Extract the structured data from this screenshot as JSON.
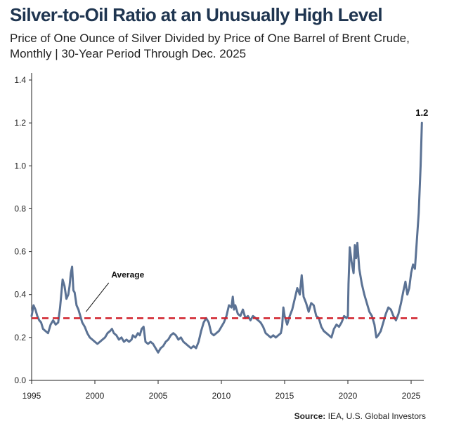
{
  "title": "Silver-to-Oil Ratio at an Unusually High Level",
  "subtitle": "Price of One Ounce of Silver Divided by Price of One Barrel of Brent Crude, Monthly | 30-Year Period Through Dec. 2025",
  "source_label": "Source:",
  "source_text": "IEA, U.S. Global Investors",
  "chart_data": {
    "type": "line",
    "ylim": [
      0,
      1.4
    ],
    "xlim": [
      1995,
      2026
    ],
    "y_ticks": [
      "0.0",
      "0.2",
      "0.4",
      "0.6",
      "0.8",
      "1.0",
      "1.2",
      "1.4"
    ],
    "x_ticks": [
      "1995",
      "2000",
      "2005",
      "2010",
      "2015",
      "2020",
      "2025"
    ],
    "series_color": "#5b7294",
    "average": {
      "value": 0.29,
      "label": "Average",
      "color": "#d0202a"
    },
    "last_value_label": "1.2",
    "series": [
      {
        "points": [
          [
            1995.0,
            0.3
          ],
          [
            1995.15,
            0.35
          ],
          [
            1995.3,
            0.33
          ],
          [
            1995.45,
            0.3
          ],
          [
            1995.6,
            0.28
          ],
          [
            1995.75,
            0.27
          ],
          [
            1995.9,
            0.24
          ],
          [
            1996.1,
            0.23
          ],
          [
            1996.3,
            0.22
          ],
          [
            1996.5,
            0.26
          ],
          [
            1996.7,
            0.28
          ],
          [
            1996.9,
            0.26
          ],
          [
            1997.1,
            0.27
          ],
          [
            1997.25,
            0.34
          ],
          [
            1997.45,
            0.47
          ],
          [
            1997.6,
            0.44
          ],
          [
            1997.75,
            0.38
          ],
          [
            1997.9,
            0.4
          ],
          [
            1998.0,
            0.44
          ],
          [
            1998.1,
            0.5
          ],
          [
            1998.2,
            0.53
          ],
          [
            1998.3,
            0.42
          ],
          [
            1998.4,
            0.41
          ],
          [
            1998.55,
            0.35
          ],
          [
            1998.7,
            0.33
          ],
          [
            1998.85,
            0.3
          ],
          [
            1999.0,
            0.27
          ],
          [
            1999.2,
            0.25
          ],
          [
            1999.4,
            0.22
          ],
          [
            1999.6,
            0.2
          ],
          [
            1999.8,
            0.19
          ],
          [
            2000.0,
            0.18
          ],
          [
            2000.2,
            0.17
          ],
          [
            2000.4,
            0.18
          ],
          [
            2000.6,
            0.19
          ],
          [
            2000.8,
            0.2
          ],
          [
            2001.0,
            0.22
          ],
          [
            2001.2,
            0.23
          ],
          [
            2001.35,
            0.24
          ],
          [
            2001.5,
            0.22
          ],
          [
            2001.7,
            0.21
          ],
          [
            2001.9,
            0.19
          ],
          [
            2002.1,
            0.2
          ],
          [
            2002.3,
            0.18
          ],
          [
            2002.5,
            0.19
          ],
          [
            2002.7,
            0.18
          ],
          [
            2002.9,
            0.19
          ],
          [
            2003.0,
            0.21
          ],
          [
            2003.2,
            0.2
          ],
          [
            2003.4,
            0.22
          ],
          [
            2003.55,
            0.21
          ],
          [
            2003.7,
            0.24
          ],
          [
            2003.85,
            0.25
          ],
          [
            2004.0,
            0.18
          ],
          [
            2004.2,
            0.17
          ],
          [
            2004.4,
            0.18
          ],
          [
            2004.6,
            0.17
          ],
          [
            2004.8,
            0.15
          ],
          [
            2005.0,
            0.13
          ],
          [
            2005.2,
            0.15
          ],
          [
            2005.4,
            0.16
          ],
          [
            2005.6,
            0.18
          ],
          [
            2005.8,
            0.19
          ],
          [
            2006.0,
            0.21
          ],
          [
            2006.2,
            0.22
          ],
          [
            2006.4,
            0.21
          ],
          [
            2006.6,
            0.19
          ],
          [
            2006.8,
            0.2
          ],
          [
            2007.0,
            0.18
          ],
          [
            2007.2,
            0.17
          ],
          [
            2007.4,
            0.16
          ],
          [
            2007.6,
            0.15
          ],
          [
            2007.8,
            0.16
          ],
          [
            2008.0,
            0.15
          ],
          [
            2008.2,
            0.18
          ],
          [
            2008.4,
            0.23
          ],
          [
            2008.6,
            0.27
          ],
          [
            2008.8,
            0.29
          ],
          [
            2009.0,
            0.27
          ],
          [
            2009.2,
            0.22
          ],
          [
            2009.4,
            0.21
          ],
          [
            2009.6,
            0.22
          ],
          [
            2009.8,
            0.23
          ],
          [
            2010.0,
            0.25
          ],
          [
            2010.2,
            0.27
          ],
          [
            2010.4,
            0.3
          ],
          [
            2010.6,
            0.35
          ],
          [
            2010.8,
            0.34
          ],
          [
            2010.9,
            0.39
          ],
          [
            2011.0,
            0.33
          ],
          [
            2011.1,
            0.35
          ],
          [
            2011.3,
            0.31
          ],
          [
            2011.5,
            0.3
          ],
          [
            2011.7,
            0.33
          ],
          [
            2011.9,
            0.29
          ],
          [
            2012.1,
            0.3
          ],
          [
            2012.3,
            0.28
          ],
          [
            2012.5,
            0.3
          ],
          [
            2012.7,
            0.29
          ],
          [
            2012.9,
            0.28
          ],
          [
            2013.1,
            0.27
          ],
          [
            2013.3,
            0.25
          ],
          [
            2013.5,
            0.22
          ],
          [
            2013.7,
            0.21
          ],
          [
            2013.9,
            0.2
          ],
          [
            2014.1,
            0.21
          ],
          [
            2014.3,
            0.2
          ],
          [
            2014.5,
            0.21
          ],
          [
            2014.7,
            0.22
          ],
          [
            2014.8,
            0.25
          ],
          [
            2014.9,
            0.34
          ],
          [
            2015.0,
            0.3
          ],
          [
            2015.2,
            0.26
          ],
          [
            2015.4,
            0.3
          ],
          [
            2015.6,
            0.33
          ],
          [
            2015.8,
            0.38
          ],
          [
            2016.0,
            0.43
          ],
          [
            2016.2,
            0.4
          ],
          [
            2016.35,
            0.49
          ],
          [
            2016.5,
            0.39
          ],
          [
            2016.7,
            0.36
          ],
          [
            2016.9,
            0.32
          ],
          [
            2017.1,
            0.36
          ],
          [
            2017.3,
            0.35
          ],
          [
            2017.5,
            0.3
          ],
          [
            2017.7,
            0.29
          ],
          [
            2017.9,
            0.25
          ],
          [
            2018.1,
            0.23
          ],
          [
            2018.3,
            0.22
          ],
          [
            2018.5,
            0.21
          ],
          [
            2018.7,
            0.2
          ],
          [
            2018.9,
            0.24
          ],
          [
            2019.1,
            0.26
          ],
          [
            2019.3,
            0.25
          ],
          [
            2019.5,
            0.27
          ],
          [
            2019.7,
            0.3
          ],
          [
            2019.9,
            0.29
          ],
          [
            2020.0,
            0.3
          ],
          [
            2020.05,
            0.45
          ],
          [
            2020.15,
            0.62
          ],
          [
            2020.3,
            0.55
          ],
          [
            2020.45,
            0.5
          ],
          [
            2020.55,
            0.63
          ],
          [
            2020.65,
            0.57
          ],
          [
            2020.75,
            0.64
          ],
          [
            2020.9,
            0.52
          ],
          [
            2021.1,
            0.45
          ],
          [
            2021.3,
            0.4
          ],
          [
            2021.5,
            0.36
          ],
          [
            2021.7,
            0.32
          ],
          [
            2021.9,
            0.3
          ],
          [
            2022.1,
            0.26
          ],
          [
            2022.25,
            0.2
          ],
          [
            2022.4,
            0.21
          ],
          [
            2022.6,
            0.23
          ],
          [
            2022.8,
            0.27
          ],
          [
            2023.0,
            0.31
          ],
          [
            2023.2,
            0.34
          ],
          [
            2023.4,
            0.33
          ],
          [
            2023.6,
            0.3
          ],
          [
            2023.8,
            0.28
          ],
          [
            2024.0,
            0.31
          ],
          [
            2024.2,
            0.36
          ],
          [
            2024.4,
            0.42
          ],
          [
            2024.55,
            0.46
          ],
          [
            2024.7,
            0.4
          ],
          [
            2024.85,
            0.43
          ],
          [
            2025.0,
            0.5
          ],
          [
            2025.15,
            0.54
          ],
          [
            2025.3,
            0.52
          ],
          [
            2025.45,
            0.65
          ],
          [
            2025.6,
            0.78
          ],
          [
            2025.75,
            1.0
          ],
          [
            2025.85,
            1.2
          ]
        ]
      }
    ]
  }
}
